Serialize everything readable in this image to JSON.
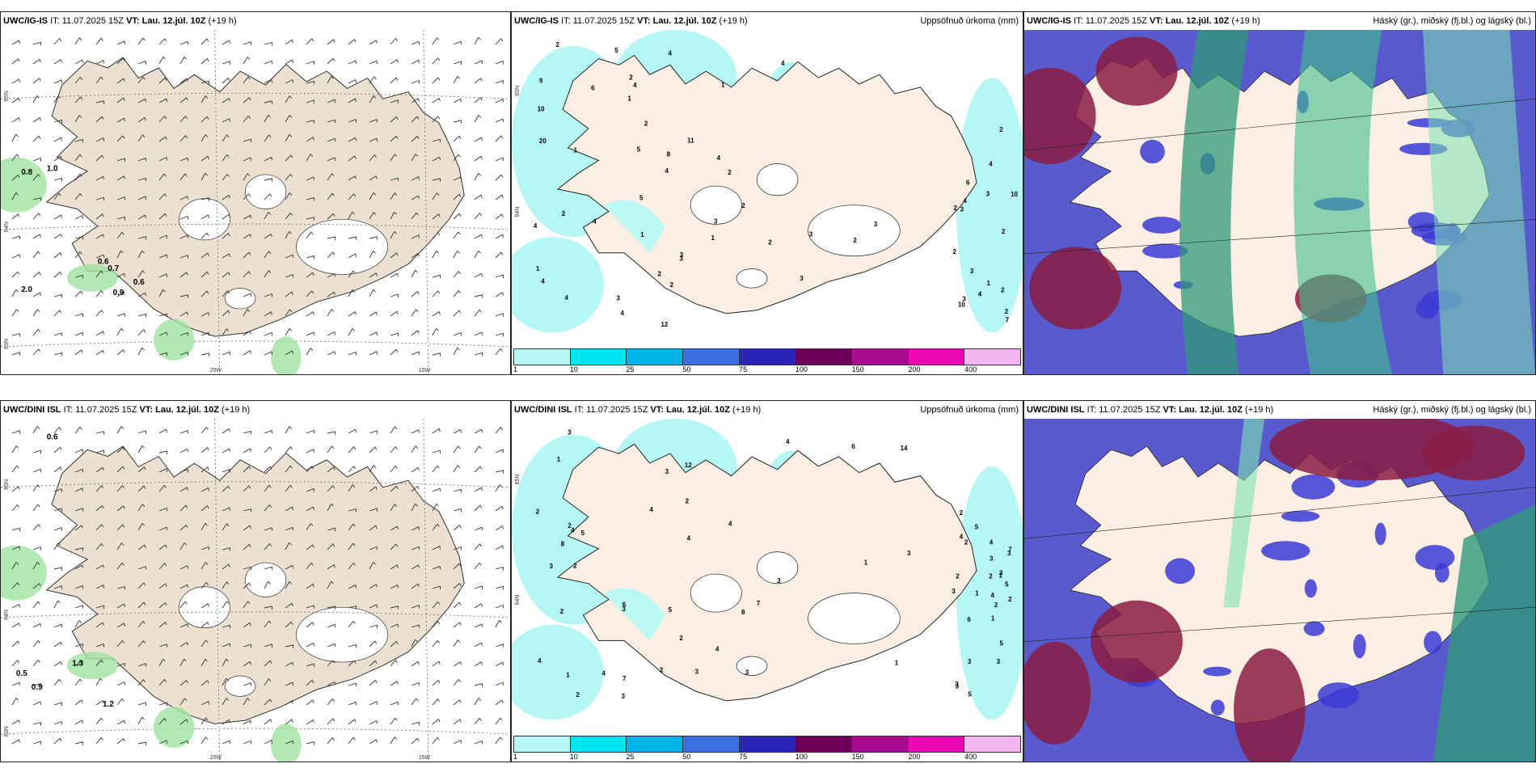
{
  "rows": [
    {
      "model": "UWC/IG-IS",
      "it": "IT: 11.07.2025 15Z",
      "vt": "VT: Lau. 12.júl. 10Z",
      "lead": "(+19 h)",
      "wind_values": [
        "0.8",
        "1.0",
        "0.6",
        "0.7",
        "0.6",
        "0.9",
        "2.0"
      ],
      "precip_values": [
        "1",
        "2",
        "3",
        "1",
        "2",
        "3",
        "4",
        "5",
        "1",
        "2",
        "2",
        "10",
        "11",
        "12",
        "4",
        "1",
        "3",
        "3",
        "2",
        "4",
        "5",
        "10",
        "2",
        "20",
        "6",
        "2",
        "4",
        "7",
        "3",
        "2",
        "4",
        "6",
        "4",
        "4",
        "2",
        "2",
        "3",
        "4",
        "9",
        "3",
        "2",
        "10",
        "1",
        "8",
        "5",
        "1",
        "2",
        "4",
        "2",
        "2",
        "2",
        "3",
        "3",
        "4",
        "3",
        "4",
        "4",
        "4",
        "3",
        "1",
        "2"
      ],
      "lat_labels": [
        "65N",
        "64N",
        "63N"
      ],
      "lon_labels": [
        "20W",
        "15W"
      ]
    },
    {
      "model": "UWC/DINI ISL",
      "it": "IT: 11.07.2025 15Z",
      "vt": "VT: Lau. 12.júl. 10Z",
      "lead": "(+19 h)",
      "wind_values": [
        "0.6",
        "1.3",
        "0.5",
        "0.9",
        "1.2"
      ],
      "precip_values": [
        "3",
        "4",
        "1",
        "5",
        "4",
        "3",
        "12",
        "8",
        "7",
        "3",
        "2",
        "6",
        "7",
        "8",
        "4",
        "1",
        "5",
        "2",
        "6",
        "14",
        "2",
        "2",
        "3",
        "3",
        "3",
        "3",
        "4",
        "3",
        "2",
        "4",
        "2",
        "1",
        "2",
        "3",
        "3",
        "2",
        "4",
        "1",
        "1",
        "1",
        "2",
        "7",
        "5",
        "3",
        "2",
        "4",
        "2",
        "3",
        "3",
        "5",
        "2",
        "4",
        "4",
        "5",
        "4",
        "3",
        "2",
        "1",
        "2",
        "3",
        "5",
        "3",
        "4",
        "6",
        "3"
      ],
      "lat_labels": [
        "65N",
        "64N",
        "63N"
      ],
      "lon_labels": [
        "20W",
        "15W"
      ]
    }
  ],
  "precip_title": "Uppsöfnuð úrkoma (mm)",
  "cloud_title": "Háský (gr.), miðský (fj.bl.) og lágský (bl.)",
  "legend": {
    "labels": [
      "1",
      "10",
      "25",
      "50",
      "75",
      "100",
      "150",
      "200",
      "400"
    ],
    "colors": [
      "#b4f7f5",
      "#00e6f0",
      "#00b4e8",
      "#3d6fe0",
      "#2b24b8",
      "#6c0056",
      "#a80c8e",
      "#ee08b5",
      "#f3b6ef"
    ]
  },
  "colors": {
    "land": "#ece0d0",
    "precip_land": "#fbeee2",
    "precip_light": "#b4f7f5",
    "wind_green": "#9fe29f",
    "wind_dark": "#2f7a2f",
    "cloud_high": "#2f9a7a",
    "cloud_mid": "#8a1c42",
    "cloud_low": "#5a5acf"
  }
}
